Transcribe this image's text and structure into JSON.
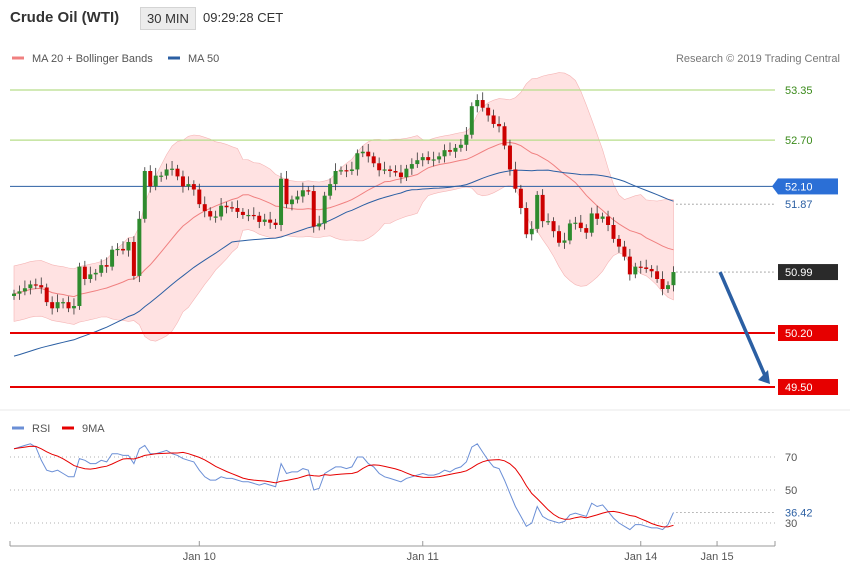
{
  "header": {
    "title": "Crude Oil (WTI)",
    "timeframe": "30 MIN",
    "time": "09:29:28 CET"
  },
  "legend": {
    "ma20_label": "MA 20 + Bollinger Bands",
    "ma50_label": "MA 50",
    "credit": "Research © 2019 Trading Central"
  },
  "rsi_legend": {
    "rsi_label": "RSI",
    "ma_label": "9MA"
  },
  "colors": {
    "up": "#2e8b2e",
    "down": "#cc0000",
    "band": "#ffd6d6",
    "ma20": "#f08080",
    "ma50": "#2b5fa3",
    "green_line": "#b7dd8a",
    "red_line": "#e60000",
    "arrow": "#2b5fa3",
    "rsi": "#6b8fd6",
    "rsi_ma": "#e60000"
  },
  "chart_data": [
    {
      "type": "candlestick",
      "title": "Crude Oil (WTI)",
      "timeframe": "30 MIN",
      "ylim": [
        49.25,
        53.75
      ],
      "x_labels": [
        {
          "label": "Jan 10",
          "index": 34
        },
        {
          "label": "Jan 11",
          "index": 75
        },
        {
          "label": "Jan 14",
          "index": 115
        },
        {
          "label": "Jan 15",
          "index": 129
        }
      ],
      "levels": [
        {
          "value": 53.35,
          "label": "53.35",
          "kind": "resistance"
        },
        {
          "value": 52.7,
          "label": "52.70",
          "kind": "resistance"
        },
        {
          "value": 52.1,
          "label": "52.10",
          "kind": "pivot"
        },
        {
          "value": 51.87,
          "label": "51.87",
          "kind": "ma50_value"
        },
        {
          "value": 50.99,
          "label": "50.99",
          "kind": "last_price"
        },
        {
          "value": 50.2,
          "label": "50.20",
          "kind": "support"
        },
        {
          "value": 49.5,
          "label": "49.50",
          "kind": "support"
        }
      ],
      "arrow": {
        "from": {
          "index": 129,
          "value": 50.99
        },
        "to": {
          "index": 141,
          "value": 49.5
        }
      },
      "close": [
        50.71,
        50.74,
        50.78,
        50.83,
        50.82,
        50.79,
        50.6,
        50.52,
        50.6,
        50.6,
        50.52,
        50.55,
        51.06,
        50.9,
        50.96,
        50.98,
        51.08,
        51.06,
        51.28,
        51.29,
        51.27,
        51.38,
        50.94,
        51.68,
        52.3,
        52.1,
        52.24,
        52.24,
        52.32,
        52.33,
        52.23,
        52.1,
        52.13,
        52.06,
        51.87,
        51.78,
        51.71,
        51.71,
        51.85,
        51.83,
        51.82,
        51.77,
        51.73,
        51.73,
        51.72,
        51.64,
        51.67,
        51.63,
        51.6,
        52.2,
        51.87,
        51.93,
        51.97,
        52.05,
        52.04,
        51.58,
        51.62,
        51.98,
        52.13,
        52.3,
        52.31,
        52.3,
        52.32,
        52.53,
        52.55,
        52.49,
        52.4,
        52.31,
        52.32,
        52.3,
        52.28,
        52.22,
        52.33,
        52.39,
        52.44,
        52.48,
        52.44,
        52.45,
        52.49,
        52.57,
        52.55,
        52.6,
        52.64,
        52.77,
        53.14,
        53.22,
        53.12,
        53.02,
        52.91,
        52.88,
        52.63,
        52.32,
        52.07,
        51.82,
        51.48,
        51.55,
        51.99,
        51.65,
        51.65,
        51.52,
        51.37,
        51.4,
        51.62,
        51.63,
        51.56,
        51.5,
        51.75,
        51.68,
        51.71,
        51.6,
        51.42,
        51.32,
        51.19,
        50.96,
        51.06,
        51.05,
        51.03,
        51.0,
        50.9,
        50.77,
        50.82,
        50.99
      ],
      "bollinger": {
        "upper_start": 51.3,
        "upper_peak": 53.4,
        "lower_start": 50.5,
        "lower_end": 50.8
      },
      "ma50_range": [
        49.9,
        52.28
      ]
    },
    {
      "type": "line",
      "title": "RSI",
      "series": [
        {
          "name": "RSI",
          "last": 36.42
        },
        {
          "name": "9MA"
        }
      ],
      "ylim": [
        20,
        100
      ],
      "ticks": [
        70,
        50,
        30
      ],
      "last_value_label": "36.42",
      "rsi_values": [
        75,
        76,
        77,
        78,
        76,
        68,
        62,
        61,
        62,
        60,
        58,
        58,
        69,
        68,
        66,
        66,
        68,
        67,
        72,
        72,
        71,
        71,
        66,
        75,
        77,
        72,
        72,
        73,
        74,
        72,
        71,
        69,
        68,
        67,
        62,
        58,
        56,
        56,
        58,
        57,
        57,
        56,
        55,
        55,
        54,
        53,
        54,
        53,
        52,
        66,
        60,
        61,
        61,
        63,
        62,
        50,
        51,
        60,
        62,
        64,
        64,
        63,
        64,
        70,
        70,
        66,
        64,
        60,
        58,
        57,
        56,
        55,
        57,
        58,
        59,
        60,
        59,
        59,
        60,
        62,
        61,
        63,
        64,
        67,
        76,
        78,
        73,
        68,
        64,
        63,
        56,
        48,
        40,
        34,
        28,
        30,
        40,
        34,
        32,
        31,
        30,
        31,
        35,
        36,
        35,
        34,
        42,
        40,
        41,
        37,
        33,
        30,
        28,
        26,
        29,
        29,
        28,
        27,
        27,
        26,
        29,
        36.42
      ]
    }
  ]
}
